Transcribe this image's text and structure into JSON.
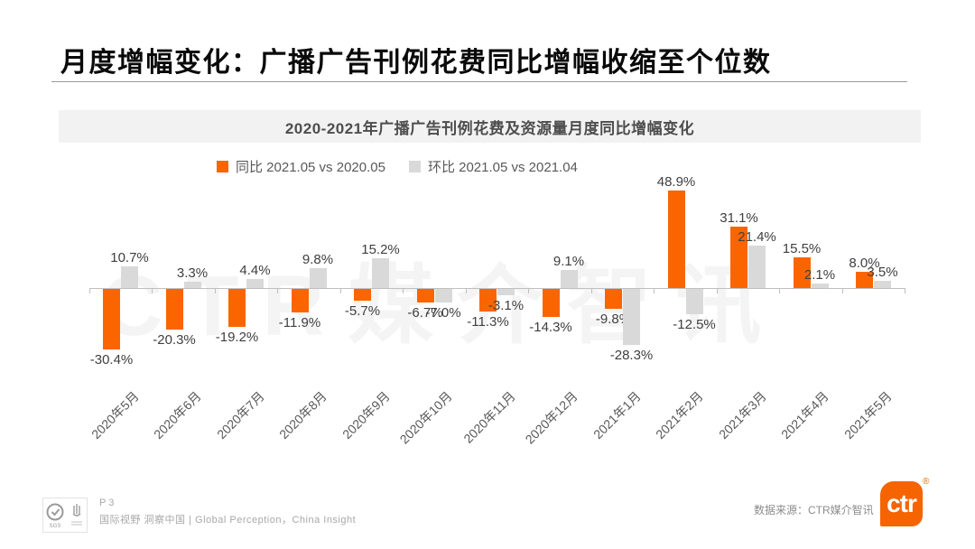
{
  "header": {
    "title": "月度增幅变化：广播广告刊例花费同比增幅收缩至个位数"
  },
  "chart": {
    "banner_title": "2020-2021年广播广告刊例花费及资源量月度同比增幅变化",
    "watermark": "CTR媒介智讯"
  },
  "chart_data": {
    "type": "bar",
    "title": "2020-2021年广播广告刊例花费及资源量月度同比增幅变化",
    "categories": [
      "2020年5月",
      "2020年6月",
      "2020年7月",
      "2020年8月",
      "2020年9月",
      "2020年10月",
      "2020年11月",
      "2020年12月",
      "2021年1月",
      "2021年2月",
      "2021年3月",
      "2021年4月",
      "2021年5月"
    ],
    "series": [
      {
        "name": "同比 2021.05 vs 2020.05",
        "color": "#fb6500",
        "values": [
          -30.4,
          -20.3,
          -19.2,
          -11.9,
          -5.7,
          -6.7,
          -11.3,
          -14.3,
          -9.8,
          48.9,
          31.1,
          15.5,
          8.0
        ]
      },
      {
        "name": "环比 2021.05 vs 2021.04",
        "color": "#d9d9d9",
        "values": [
          10.7,
          3.3,
          4.4,
          9.8,
          15.2,
          -7.0,
          -3.1,
          9.1,
          -28.3,
          -12.5,
          21.4,
          2.1,
          3.5
        ]
      }
    ],
    "value_suffix": "%",
    "ylim": [
      -35,
      55
    ],
    "grid": false,
    "legend_position": "top",
    "xlabel": "",
    "ylabel": ""
  },
  "footer": {
    "page_label": "P 3",
    "tagline": "国际视野 洞察中国 | Global Perception，China Insight",
    "data_source": "数据来源：CTR媒介智讯",
    "logo_text": "ctr",
    "logo_registered": "®"
  }
}
